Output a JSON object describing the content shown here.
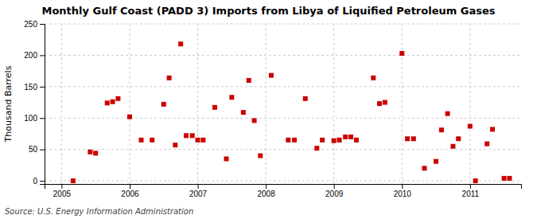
{
  "chart_data": {
    "type": "scatter",
    "title": "Monthly Gulf Coast (PADD 3) Imports from Libya of Liquified Petroleum Gases",
    "y_label": "Thousand Barrels",
    "annotations": [
      "Source: U.S. Energy Information Administration"
    ],
    "color": "#cc0000",
    "marker": "square",
    "grid": true,
    "xlim": [
      2004.75,
      2011.75
    ],
    "ylim": [
      -5,
      250
    ],
    "xticks": [
      2005,
      2006,
      2007,
      2008,
      2009,
      2010,
      2011
    ],
    "yticks": [
      0,
      50,
      100,
      150,
      200,
      250
    ],
    "x": [
      2005.17,
      2005.42,
      2005.5,
      2005.67,
      2005.75,
      2005.83,
      2006.0,
      2006.17,
      2006.33,
      2006.5,
      2006.58,
      2006.67,
      2006.75,
      2006.83,
      2006.92,
      2007.0,
      2007.08,
      2007.25,
      2007.42,
      2007.5,
      2007.67,
      2007.75,
      2007.83,
      2007.92,
      2008.08,
      2008.33,
      2008.42,
      2008.58,
      2008.75,
      2008.83,
      2009.0,
      2009.08,
      2009.17,
      2009.25,
      2009.33,
      2009.58,
      2009.67,
      2009.75,
      2010.0,
      2010.08,
      2010.17,
      2010.33,
      2010.5,
      2010.58,
      2010.67,
      2010.75,
      2010.83,
      2011.0,
      2011.08,
      2011.25,
      2011.33,
      2011.5,
      2011.58
    ],
    "values": [
      0,
      46,
      44,
      124,
      126,
      131,
      102,
      65,
      65,
      122,
      164,
      57,
      218,
      72,
      72,
      65,
      65,
      117,
      35,
      133,
      109,
      160,
      96,
      40,
      168,
      65,
      65,
      131,
      52,
      65,
      64,
      65,
      70,
      70,
      65,
      164,
      123,
      125,
      203,
      67,
      67,
      20,
      31,
      81,
      107,
      55,
      67,
      87,
      0,
      59,
      82,
      4,
      4
    ]
  }
}
